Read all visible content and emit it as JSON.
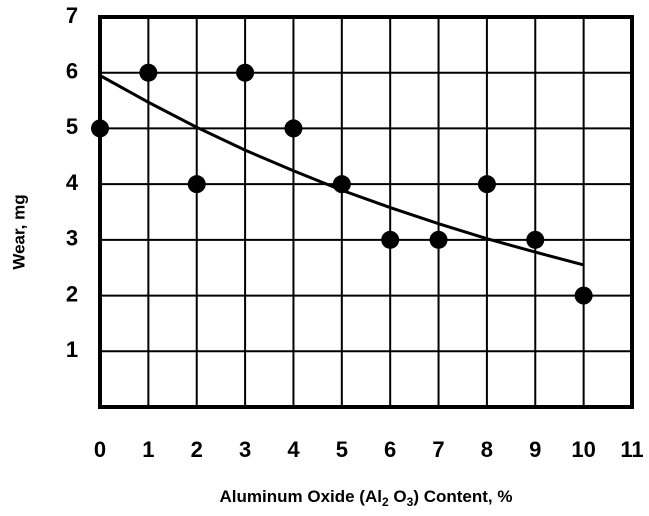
{
  "chart_data": {
    "type": "scatter",
    "y_label": "Wear, mg",
    "x_label_parts": [
      "Aluminum Oxide (Al",
      "2",
      " O",
      "3",
      ") Content, %"
    ],
    "series": [
      {
        "color": "#000000",
        "x": [
          0,
          1,
          2,
          3,
          4,
          5,
          6,
          7,
          8,
          9,
          10
        ],
        "values": [
          5,
          6,
          4,
          6,
          5,
          4,
          3,
          3,
          4,
          3,
          2
        ]
      }
    ],
    "trend": {
      "color": "#000000",
      "x": [
        0,
        1,
        2,
        3,
        4,
        5,
        6,
        7,
        8,
        9,
        10
      ],
      "values": [
        5.95,
        5.47,
        5.02,
        4.61,
        4.24,
        3.89,
        3.58,
        3.29,
        3.02,
        2.78,
        2.55
      ]
    },
    "xlim": [
      0,
      11
    ],
    "xticks": [
      0,
      1,
      2,
      3,
      4,
      5,
      6,
      7,
      8,
      9,
      10,
      11
    ],
    "ylim": [
      0,
      7
    ],
    "yticks": [
      1,
      2,
      3,
      4,
      5,
      6,
      7
    ],
    "grid": true
  }
}
